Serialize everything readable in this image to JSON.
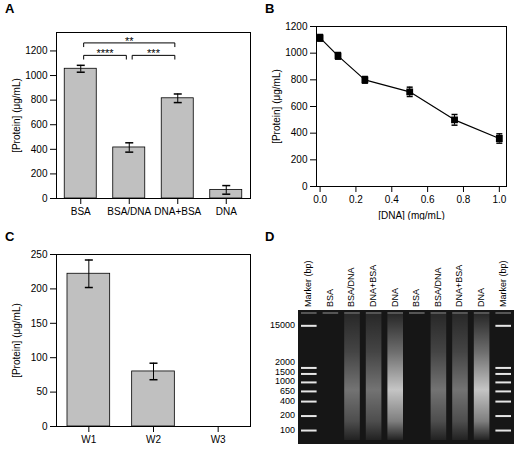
{
  "chart_data": [
    {
      "type": "bar",
      "title": "A",
      "categories": [
        "BSA",
        "BSA/DNA",
        "DNA+BSA",
        "DNA"
      ],
      "values": [
        1055,
        415,
        815,
        70
      ],
      "errors": [
        28,
        38,
        35,
        35
      ],
      "ylabel": "[Protein] (μg/mL)",
      "ylim": [
        0,
        1350
      ],
      "yticks": [
        0,
        200,
        400,
        600,
        800,
        1000,
        1200
      ],
      "color": "#c0c0c0",
      "annotations": [
        {
          "from": "BSA",
          "to": "BSA/DNA",
          "label": "****"
        },
        {
          "from": "BSA/DNA",
          "to": "DNA+BSA",
          "label": "***"
        },
        {
          "from": "BSA",
          "to": "DNA+BSA",
          "label": "**"
        }
      ]
    },
    {
      "type": "line",
      "title": "B",
      "x": [
        0,
        0.1,
        0.25,
        0.5,
        0.75,
        1.0
      ],
      "values": [
        1115,
        980,
        800,
        710,
        500,
        360
      ],
      "errors": [
        25,
        25,
        25,
        35,
        40,
        35
      ],
      "xlabel": "[DNA] (mg/mL)",
      "ylabel": "[Protein] (μg/mL)",
      "xlim": [
        -0.02,
        1.04
      ],
      "xticks": [
        {
          "value": 0,
          "label": "0.0"
        },
        0.2,
        0.4,
        0.6,
        0.8,
        {
          "value": 1,
          "label": "1.0"
        }
      ],
      "ylim": [
        0,
        1200
      ],
      "yticks": [
        0,
        200,
        400,
        600,
        800,
        1000,
        1200
      ],
      "color": "#000000",
      "marker": "square"
    },
    {
      "type": "bar",
      "title": "C",
      "categories": [
        "W1",
        "W2",
        "W3"
      ],
      "values": [
        222,
        80,
        0
      ],
      "errors": [
        20,
        12,
        0
      ],
      "ylabel": "[Protein] (μg/mL)",
      "ylim": [
        0,
        250
      ],
      "yticks": [
        0,
        50,
        100,
        150,
        200,
        250
      ],
      "color": "#c0c0c0"
    },
    {
      "type": "gel",
      "title": "D",
      "lanes": [
        "Marker (bp)",
        "BSA",
        "BSA/DNA",
        "DNA+BSA",
        "DNA",
        "BSA",
        "BSA/DNA",
        "DNA+BSA",
        "DNA",
        "Marker (bp)"
      ],
      "marker_bands": [
        15000,
        2000,
        1500,
        1000,
        650,
        400,
        200,
        100
      ]
    }
  ]
}
